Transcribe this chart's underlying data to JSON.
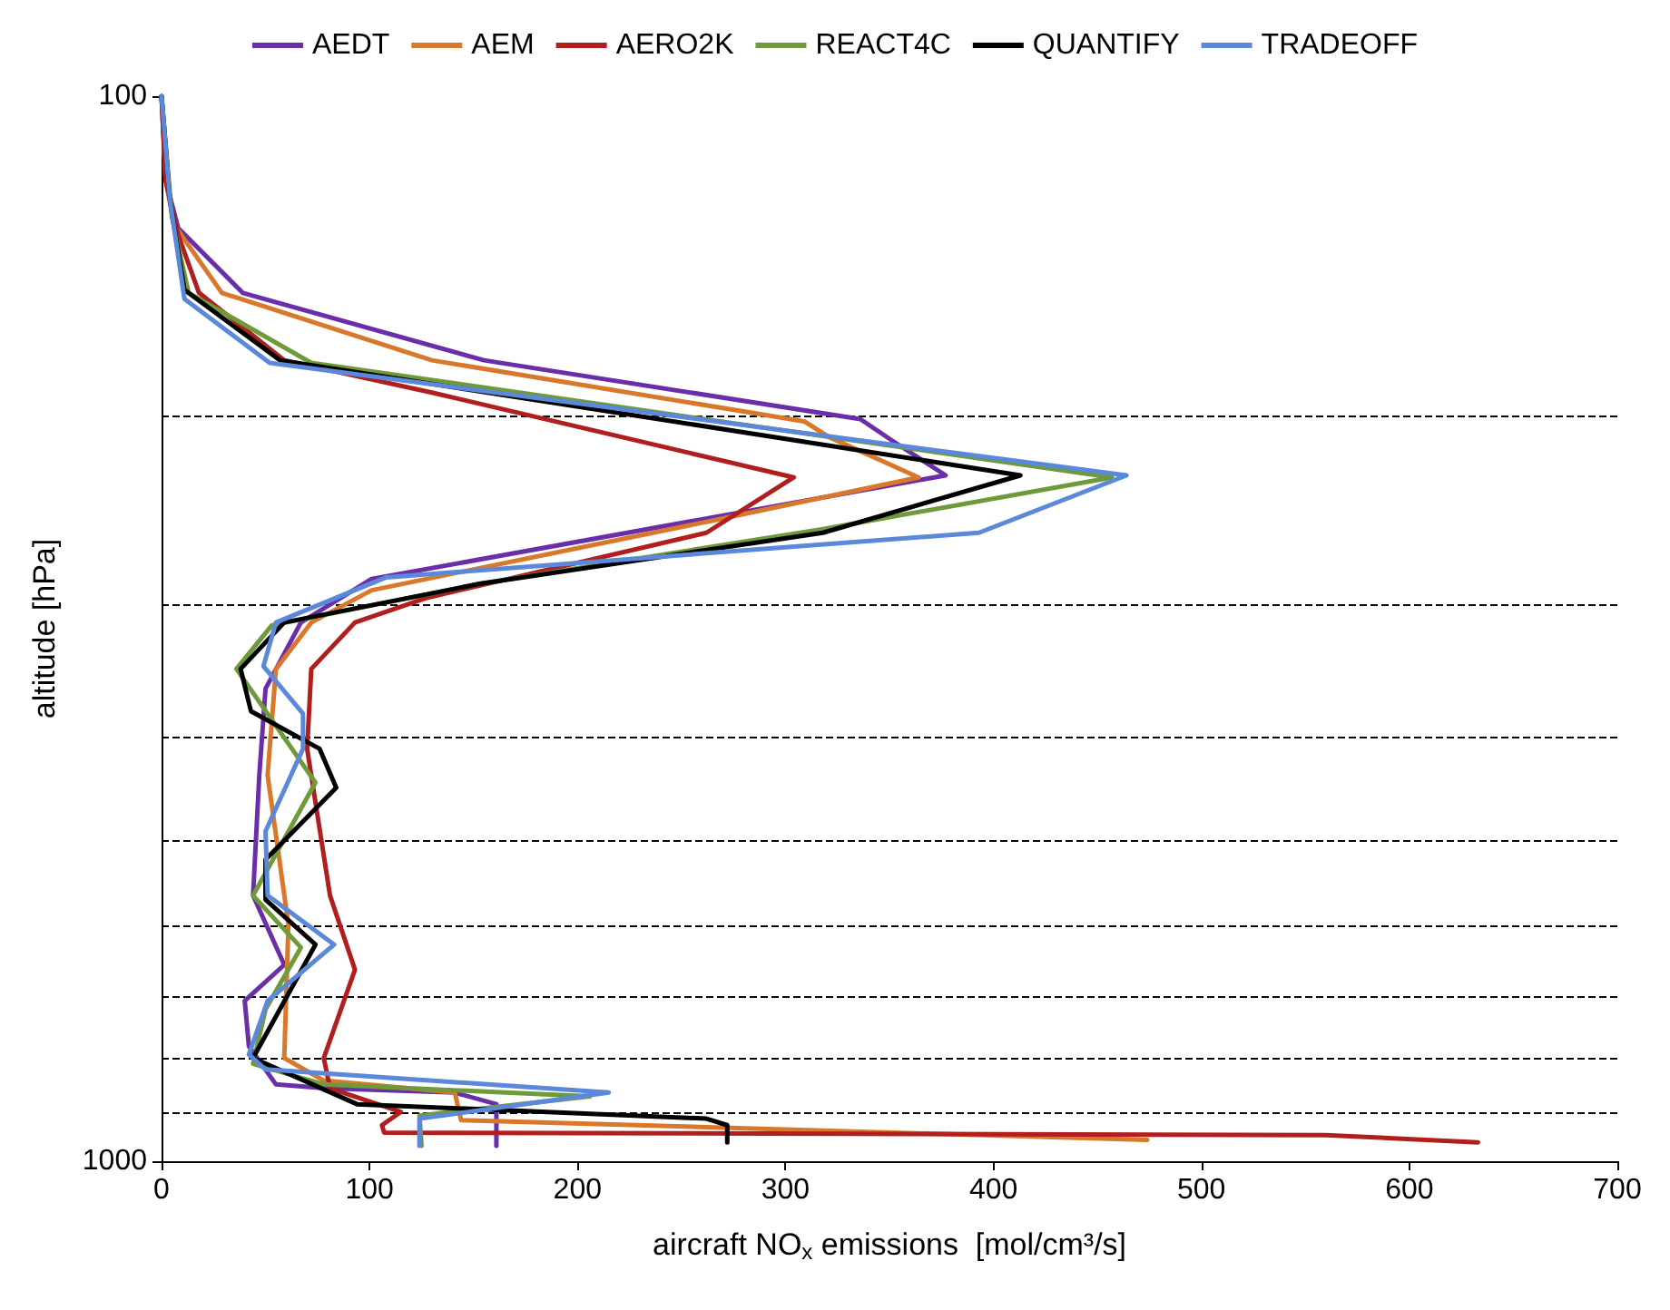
{
  "chart_data": {
    "type": "line",
    "xlabel": "aircraft NO$_{x}$ emissions  [mol/cm³/s]",
    "ylabel": "altitude [hPa]",
    "xlim": [
      0,
      700
    ],
    "xticks": [
      0,
      100,
      200,
      300,
      400,
      500,
      600,
      700
    ],
    "ylim": [
      1000,
      100
    ],
    "yticks": [
      100,
      1000
    ],
    "log": "y",
    "grid": false,
    "legend": "top",
    "marker": "none",
    "line_style": "solid",
    "ref_lines": [
      {
        "axis": "y",
        "value": 200,
        "color": "#000000",
        "line_style": "dashed"
      },
      {
        "axis": "y",
        "value": 300,
        "color": "#000000",
        "line_style": "dashed"
      },
      {
        "axis": "y",
        "value": 400,
        "color": "#000000",
        "line_style": "dashed"
      },
      {
        "axis": "y",
        "value": 500,
        "color": "#000000",
        "line_style": "dashed"
      },
      {
        "axis": "y",
        "value": 600,
        "color": "#000000",
        "line_style": "dashed"
      },
      {
        "axis": "y",
        "value": 700,
        "color": "#000000",
        "line_style": "dashed"
      },
      {
        "axis": "y",
        "value": 800,
        "color": "#000000",
        "line_style": "dashed"
      },
      {
        "axis": "y",
        "value": 900,
        "color": "#000000",
        "line_style": "dashed"
      }
    ],
    "series": [
      {
        "name": "AEDT",
        "color": "#6a2fa8",
        "x": [
          0,
          2,
          8,
          39,
          155,
          336,
          352,
          377,
          101,
          67,
          50,
          47,
          44,
          59,
          40,
          42,
          55,
          78,
          141,
          161,
          161
        ],
        "values": [
          100,
          120,
          133,
          153,
          177,
          201,
          211,
          227,
          284,
          312,
          360,
          434,
          563,
          654,
          707,
          780,
          847,
          854,
          862,
          884,
          967
        ]
      },
      {
        "name": "AEM",
        "color": "#d9772a",
        "x": [
          0,
          2,
          6,
          29,
          130,
          309,
          321,
          364,
          262,
          101,
          72,
          55,
          51,
          61,
          59,
          78,
          141,
          144,
          474
        ],
        "values": [
          100,
          120,
          132,
          153,
          177,
          202,
          209,
          228,
          251,
          291,
          312,
          345,
          434,
          600,
          800,
          840,
          862,
          915,
          955
        ]
      },
      {
        "name": "AERO2K",
        "color": "#b01e1e",
        "x": [
          0,
          2,
          8,
          18,
          59,
          131,
          304,
          262,
          127,
          93,
          72,
          70,
          81,
          93,
          78,
          81,
          115,
          106,
          107,
          560,
          633
        ],
        "values": [
          100,
          120,
          135,
          153,
          177,
          190,
          228,
          257,
          296,
          312,
          345,
          410,
          563,
          661,
          800,
          854,
          899,
          925,
          940,
          945,
          960
        ]
      },
      {
        "name": "REACT4C",
        "color": "#6e9a3a",
        "x": [
          0,
          5,
          13,
          72,
          457,
          318,
          153,
          53,
          36,
          74,
          44,
          67,
          50,
          44,
          78,
          206,
          124,
          125
        ],
        "values": [
          100,
          130,
          153,
          178,
          228,
          255,
          287,
          314,
          345,
          441,
          563,
          630,
          720,
          810,
          847,
          869,
          906,
          967
        ]
      },
      {
        "name": "QUANTIFY",
        "color": "#000000",
        "x": [
          0,
          4,
          11,
          57,
          413,
          318,
          153,
          59,
          38,
          43,
          76,
          84,
          50,
          50,
          74,
          44,
          94,
          262,
          272,
          272
        ],
        "values": [
          100,
          125,
          152,
          177,
          227,
          257,
          287,
          312,
          345,
          378,
          410,
          446,
          521,
          568,
          626,
          800,
          884,
          912,
          925,
          960
        ]
      },
      {
        "name": "TRADEOFF",
        "color": "#5b88d8",
        "x": [
          0,
          4,
          11,
          52,
          464,
          393,
          108,
          55,
          49,
          68,
          68,
          50,
          51,
          83,
          51,
          42,
          50,
          215,
          124,
          124
        ],
        "values": [
          100,
          125,
          155,
          178,
          227,
          257,
          283,
          312,
          343,
          380,
          410,
          490,
          563,
          626,
          707,
          794,
          820,
          862,
          912,
          967
        ]
      }
    ]
  }
}
